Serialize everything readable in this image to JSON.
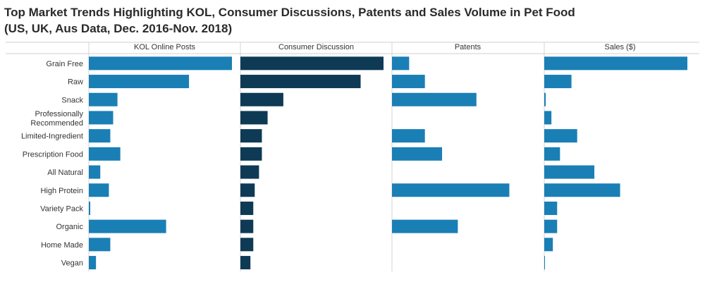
{
  "title_line1": "Top Market Trends Highlighting KOL, Consumer Discussions, Patents and Sales Volume in Pet Food",
  "title_line2": " (US, UK, Aus Data, Dec. 2016-Nov. 2018)",
  "chart_data": {
    "type": "bar",
    "orientation": "horizontal",
    "layout": "small-multiples",
    "value_axis_labels_shown": false,
    "grid": false,
    "categories": [
      [
        "Grain Free"
      ],
      [
        "Raw"
      ],
      [
        "Snack"
      ],
      [
        "Professionally",
        "Recommended"
      ],
      [
        "Limited-Ingredient"
      ],
      [
        "Prescription Food"
      ],
      [
        "All Natural"
      ],
      [
        "High Protein"
      ],
      [
        "Variety Pack"
      ],
      [
        "Organic"
      ],
      [
        "Home Made"
      ],
      [
        "Vegan"
      ]
    ],
    "series": [
      {
        "name": "KOL Online Posts",
        "color": "#1a7fb5",
        "values": [
          100,
          70,
          20,
          17,
          15,
          22,
          8,
          14,
          1,
          54,
          15,
          5
        ]
      },
      {
        "name": "Consumer Discussion",
        "color": "#0e3a55",
        "values": [
          100,
          84,
          30,
          19,
          15,
          15,
          13,
          10,
          9,
          9,
          9,
          7
        ]
      },
      {
        "name": "Patents",
        "color": "#1a7fb5",
        "values": [
          12,
          23,
          59,
          0,
          23,
          35,
          0,
          82,
          0,
          46,
          0,
          0
        ]
      },
      {
        "name": "Sales ($)",
        "color": "#1a7fb5",
        "values": [
          100,
          19,
          1,
          5,
          23,
          11,
          35,
          53,
          9,
          9,
          6,
          0.5
        ]
      }
    ]
  }
}
